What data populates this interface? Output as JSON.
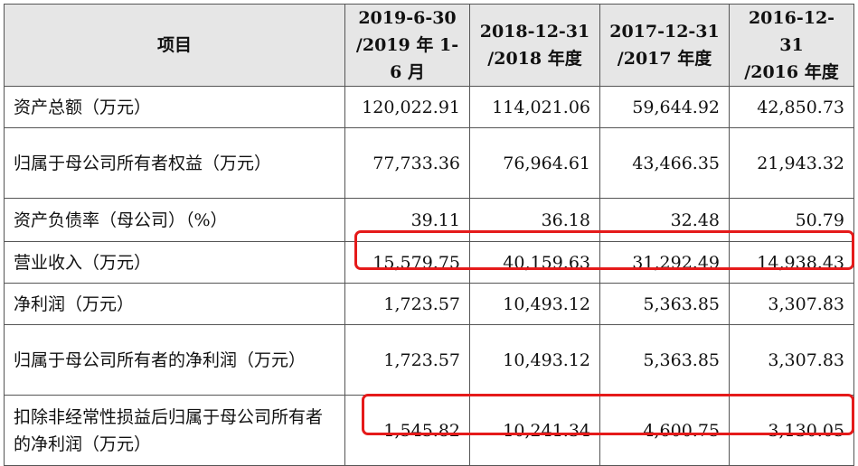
{
  "header": {
    "label": "项目",
    "columns": [
      {
        "line1": "2019-6-30",
        "line2": "/2019 年 1-6 月"
      },
      {
        "line1": "2018-12-31",
        "line2": "/2018 年度"
      },
      {
        "line1": "2017-12-31",
        "line2": "/2017 年度"
      },
      {
        "line1": "2016-12-31",
        "line2": "/2016 年度"
      }
    ]
  },
  "rows": [
    {
      "label": "资产总额（万元）",
      "values": [
        "120,022.91",
        "114,021.06",
        "59,644.92",
        "42,850.73"
      ]
    },
    {
      "label": "归属于母公司所有者权益（万元）",
      "values": [
        "77,733.36",
        "76,964.61",
        "43,466.35",
        "21,943.32"
      ]
    },
    {
      "label": "资产负债率（母公司）（%）",
      "values": [
        "39.11",
        "36.18",
        "32.48",
        "50.79"
      ]
    },
    {
      "label": "营业收入（万元）",
      "values": [
        "15,579.75",
        "40,159.63",
        "31,292.49",
        "14,938.43"
      ]
    },
    {
      "label": "净利润（万元）",
      "values": [
        "1,723.57",
        "10,493.12",
        "5,363.85",
        "3,307.83"
      ]
    },
    {
      "label": "归属于母公司所有者的净利润（万元）",
      "values": [
        "1,723.57",
        "10,493.12",
        "5,363.85",
        "3,307.83"
      ]
    },
    {
      "label": "扣除非经常性损益后归属于母公司所有者的净利润（万元）",
      "values": [
        "1,545.82",
        "10,241.34",
        "4,600.75",
        "3,130.05"
      ]
    }
  ],
  "highlight_color": "#e51a1a"
}
